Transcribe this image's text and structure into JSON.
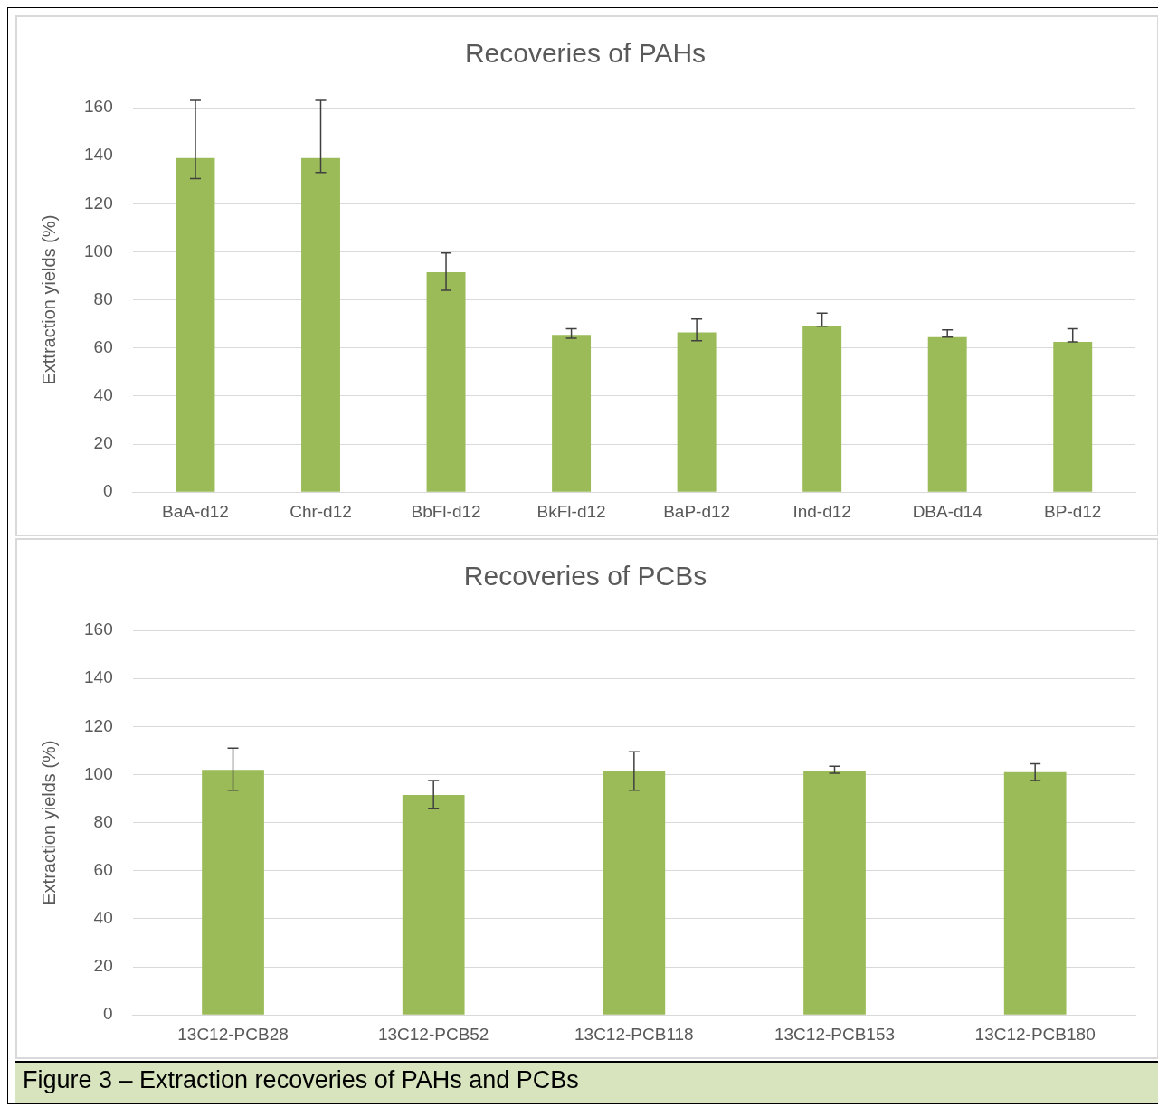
{
  "chart_data": [
    {
      "type": "bar",
      "title": "Recoveries of PAHs",
      "ylabel": "Exttraction yields (%)",
      "categories": [
        "BaA-d12",
        "Chr-d12",
        "BbFl-d12",
        "BkFl-d12",
        "BaP-d12",
        "Ind-d12",
        "DBA-d14",
        "BP-d12"
      ],
      "values": [
        139,
        139,
        91.5,
        65.5,
        66.5,
        69,
        64.5,
        62.5
      ],
      "color": "#9bbb59",
      "errors": [
        [
          130.5,
          163
        ],
        [
          133,
          163
        ],
        [
          84,
          99.5
        ],
        [
          64,
          68
        ],
        [
          63,
          72
        ],
        [
          69,
          74.5
        ],
        [
          64.5,
          67.5
        ],
        [
          62.5,
          68
        ]
      ],
      "ylim": [
        0,
        160
      ],
      "yticks": [
        0,
        20,
        40,
        60,
        80,
        100,
        120,
        140,
        160
      ],
      "grid": "y",
      "legend": false
    },
    {
      "type": "bar",
      "title": "Recoveries of PCBs",
      "ylabel": "Extraction yields (%)",
      "categories": [
        "13C12-PCB28",
        "13C12-PCB52",
        "13C12-PCB118",
        "13C12-PCB153",
        "13C12-PCB180"
      ],
      "values": [
        102,
        91.5,
        101.5,
        101.5,
        101
      ],
      "color": "#9bbb59",
      "errors": [
        [
          93.5,
          111
        ],
        [
          86,
          97.5
        ],
        [
          93.5,
          109.5
        ],
        [
          100.5,
          103.5
        ],
        [
          97.5,
          104.5
        ]
      ],
      "ylim": [
        0,
        160
      ],
      "yticks": [
        0,
        20,
        40,
        60,
        80,
        100,
        120,
        140,
        160
      ],
      "grid": "y",
      "legend": false,
      "annotations": [
        "Figure 3 – Extraction recoveries of PAHs and PCBs"
      ]
    }
  ]
}
